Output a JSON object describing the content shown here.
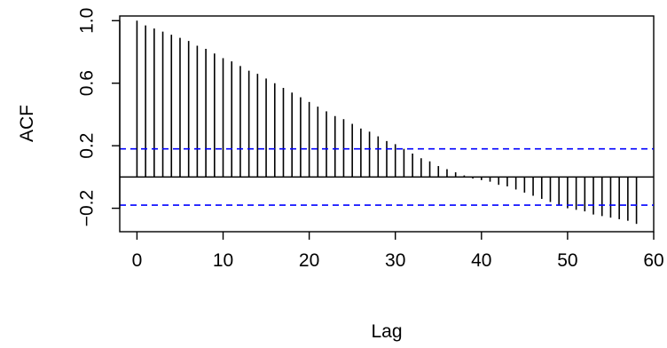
{
  "chart_data": {
    "type": "bar",
    "title": "",
    "xlabel": "Lag",
    "ylabel": "ACF",
    "xlim": [
      -2,
      60
    ],
    "ylim": [
      -0.35,
      1.03
    ],
    "x_ticks": [
      0,
      10,
      20,
      30,
      40,
      50,
      60
    ],
    "x_tick_labels": [
      "0",
      "10",
      "20",
      "30",
      "40",
      "50",
      "60"
    ],
    "y_ticks": [
      -0.2,
      0.2,
      0.6,
      1.0
    ],
    "y_tick_labels": [
      "−0.2",
      "0.2",
      "0.6",
      "1.0"
    ],
    "confidence_bound": 0.18,
    "lags": [
      0,
      1,
      2,
      3,
      4,
      5,
      6,
      7,
      8,
      9,
      10,
      11,
      12,
      13,
      14,
      15,
      16,
      17,
      18,
      19,
      20,
      21,
      22,
      23,
      24,
      25,
      26,
      27,
      28,
      29,
      30,
      31,
      32,
      33,
      34,
      35,
      36,
      37,
      38,
      39,
      40,
      41,
      42,
      43,
      44,
      45,
      46,
      47,
      48,
      49,
      50,
      51,
      52,
      53,
      54,
      55,
      56,
      57,
      58
    ],
    "values": [
      1.0,
      0.97,
      0.95,
      0.93,
      0.91,
      0.89,
      0.87,
      0.84,
      0.82,
      0.79,
      0.76,
      0.74,
      0.71,
      0.68,
      0.66,
      0.63,
      0.6,
      0.57,
      0.54,
      0.51,
      0.48,
      0.45,
      0.42,
      0.39,
      0.37,
      0.34,
      0.31,
      0.29,
      0.26,
      0.23,
      0.21,
      0.18,
      0.15,
      0.12,
      0.1,
      0.07,
      0.05,
      0.03,
      0.01,
      -0.01,
      -0.02,
      -0.03,
      -0.05,
      -0.06,
      -0.08,
      -0.1,
      -0.12,
      -0.14,
      -0.16,
      -0.18,
      -0.2,
      -0.21,
      -0.22,
      -0.24,
      -0.25,
      -0.26,
      -0.27,
      -0.28,
      -0.3
    ],
    "grid": false,
    "colors": {
      "bars": "#000000",
      "bounds": "#0000ff",
      "zero_line": "#000000",
      "frame": "#000000"
    }
  }
}
